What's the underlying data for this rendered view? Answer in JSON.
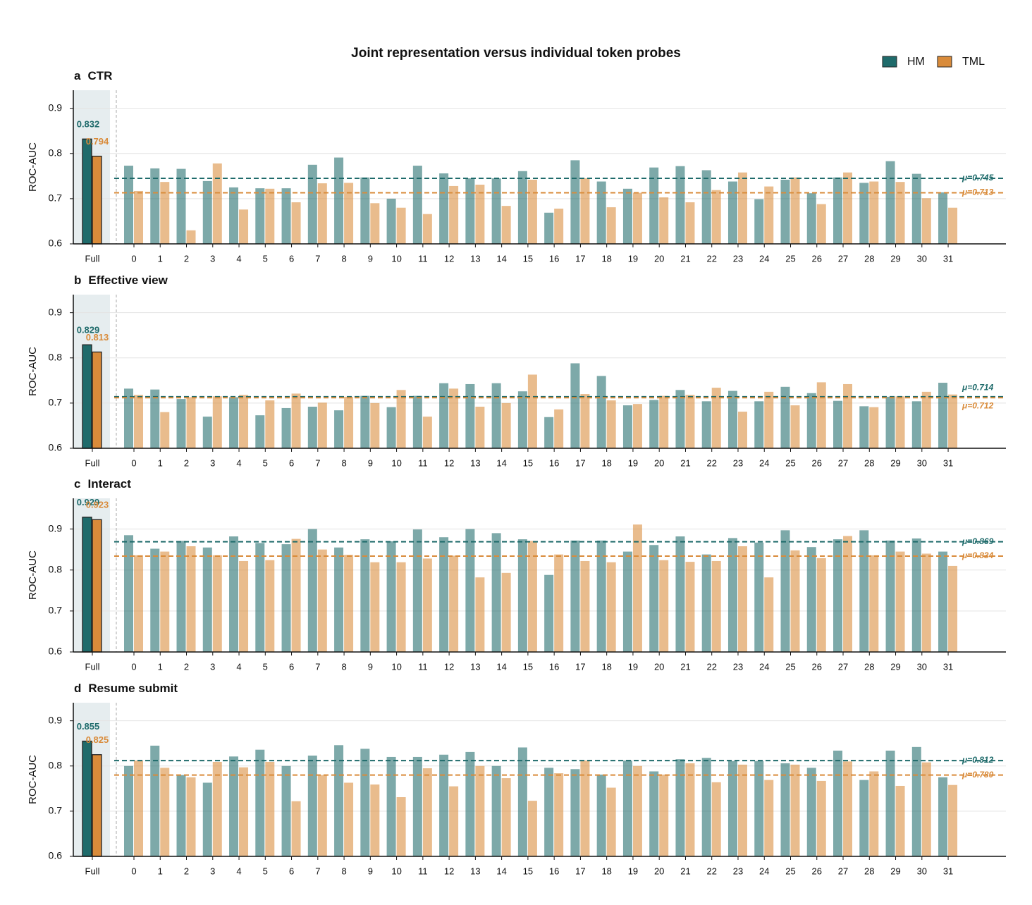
{
  "title": "Joint representation versus individual token probes",
  "legend": "upper right",
  "chart_data": [
    {
      "type": "bar",
      "panel_label": "a",
      "title": "CTR",
      "ylabel": "ROC-AUC",
      "categories": [
        "Full",
        "0",
        "1",
        "2",
        "3",
        "4",
        "5",
        "6",
        "7",
        "8",
        "9",
        "10",
        "11",
        "12",
        "13",
        "14",
        "15",
        "16",
        "17",
        "18",
        "19",
        "20",
        "21",
        "22",
        "23",
        "24",
        "25",
        "26",
        "27",
        "28",
        "29",
        "30",
        "31"
      ],
      "series": [
        {
          "name": "HM",
          "color": "#1f6b6b",
          "values": [
            0.832,
            0.773,
            0.767,
            0.766,
            0.739,
            0.725,
            0.723,
            0.723,
            0.775,
            0.791,
            0.747,
            0.7,
            0.773,
            0.756,
            0.745,
            0.745,
            0.761,
            0.669,
            0.785,
            0.738,
            0.722,
            0.769,
            0.772,
            0.763,
            0.738,
            0.699,
            0.742,
            0.712,
            0.747,
            0.735,
            0.783,
            0.755,
            0.714
          ],
          "mean": {
            "value": 0.745,
            "label": "μ=0.745"
          }
        },
        {
          "name": "TML",
          "color": "#d98b3a",
          "values": [
            0.794,
            0.717,
            0.737,
            0.63,
            0.778,
            0.676,
            0.722,
            0.692,
            0.734,
            0.735,
            0.69,
            0.68,
            0.666,
            0.728,
            0.731,
            0.684,
            0.742,
            0.678,
            0.745,
            0.681,
            0.713,
            0.703,
            0.692,
            0.719,
            0.758,
            0.727,
            0.747,
            0.688,
            0.758,
            0.738,
            0.737,
            0.701,
            0.68
          ],
          "mean": {
            "value": 0.713,
            "label": "μ=0.713"
          }
        }
      ],
      "ylim": [
        0.6,
        0.94
      ],
      "yticks": [
        0.6,
        0.7,
        0.8,
        0.9
      ],
      "grid": true
    },
    {
      "type": "bar",
      "panel_label": "b",
      "title": "Effective view",
      "ylabel": "ROC-AUC",
      "categories": [
        "Full",
        "0",
        "1",
        "2",
        "3",
        "4",
        "5",
        "6",
        "7",
        "8",
        "9",
        "10",
        "11",
        "12",
        "13",
        "14",
        "15",
        "16",
        "17",
        "18",
        "19",
        "20",
        "21",
        "22",
        "23",
        "24",
        "25",
        "26",
        "27",
        "28",
        "29",
        "30",
        "31"
      ],
      "series": [
        {
          "name": "HM",
          "color": "#1f6b6b",
          "values": [
            0.829,
            0.732,
            0.73,
            0.709,
            0.67,
            0.713,
            0.673,
            0.689,
            0.692,
            0.684,
            0.716,
            0.691,
            0.716,
            0.744,
            0.742,
            0.744,
            0.726,
            0.669,
            0.788,
            0.76,
            0.695,
            0.707,
            0.729,
            0.704,
            0.727,
            0.704,
            0.736,
            0.722,
            0.705,
            0.693,
            0.714,
            0.704,
            0.745
          ],
          "mean": {
            "value": 0.714,
            "label": "μ=0.714"
          }
        },
        {
          "name": "TML",
          "color": "#d98b3a",
          "values": [
            0.813,
            0.718,
            0.68,
            0.713,
            0.715,
            0.718,
            0.706,
            0.721,
            0.701,
            0.714,
            0.7,
            0.729,
            0.67,
            0.732,
            0.692,
            0.7,
            0.763,
            0.686,
            0.72,
            0.706,
            0.698,
            0.716,
            0.718,
            0.734,
            0.681,
            0.725,
            0.695,
            0.746,
            0.742,
            0.691,
            0.715,
            0.725,
            0.719
          ],
          "mean": {
            "value": 0.712,
            "label": "μ=0.712"
          }
        }
      ],
      "ylim": [
        0.6,
        0.94
      ],
      "yticks": [
        0.6,
        0.7,
        0.8,
        0.9
      ],
      "grid": true
    },
    {
      "type": "bar",
      "panel_label": "c",
      "title": "Interact",
      "ylabel": "ROC-AUC",
      "categories": [
        "Full",
        "0",
        "1",
        "2",
        "3",
        "4",
        "5",
        "6",
        "7",
        "8",
        "9",
        "10",
        "11",
        "12",
        "13",
        "14",
        "15",
        "16",
        "17",
        "18",
        "19",
        "20",
        "21",
        "22",
        "23",
        "24",
        "25",
        "26",
        "27",
        "28",
        "29",
        "30",
        "31"
      ],
      "series": [
        {
          "name": "HM",
          "color": "#1f6b6b",
          "values": [
            0.929,
            0.885,
            0.852,
            0.871,
            0.855,
            0.882,
            0.866,
            0.863,
            0.9,
            0.855,
            0.875,
            0.87,
            0.899,
            0.88,
            0.9,
            0.89,
            0.875,
            0.788,
            0.872,
            0.872,
            0.845,
            0.861,
            0.882,
            0.838,
            0.878,
            0.867,
            0.897,
            0.856,
            0.875,
            0.897,
            0.872,
            0.877,
            0.845
          ],
          "mean": {
            "value": 0.869,
            "label": "μ=0.869"
          }
        },
        {
          "name": "TML",
          "color": "#d98b3a",
          "values": [
            0.923,
            0.836,
            0.845,
            0.858,
            0.836,
            0.822,
            0.824,
            0.876,
            0.85,
            0.837,
            0.819,
            0.819,
            0.828,
            0.835,
            0.782,
            0.793,
            0.871,
            0.838,
            0.822,
            0.819,
            0.911,
            0.824,
            0.82,
            0.822,
            0.858,
            0.782,
            0.848,
            0.829,
            0.883,
            0.836,
            0.845,
            0.84,
            0.81
          ],
          "mean": {
            "value": 0.834,
            "label": "μ=0.834"
          }
        }
      ],
      "ylim": [
        0.6,
        0.975
      ],
      "yticks": [
        0.6,
        0.7,
        0.8,
        0.9
      ],
      "grid": true
    },
    {
      "type": "bar",
      "panel_label": "d",
      "title": "Resume submit",
      "ylabel": "ROC-AUC",
      "categories": [
        "Full",
        "0",
        "1",
        "2",
        "3",
        "4",
        "5",
        "6",
        "7",
        "8",
        "9",
        "10",
        "11",
        "12",
        "13",
        "14",
        "15",
        "16",
        "17",
        "18",
        "19",
        "20",
        "21",
        "22",
        "23",
        "24",
        "25",
        "26",
        "27",
        "28",
        "29",
        "30",
        "31"
      ],
      "series": [
        {
          "name": "HM",
          "color": "#1f6b6b",
          "values": [
            0.855,
            0.8,
            0.845,
            0.78,
            0.763,
            0.821,
            0.836,
            0.8,
            0.823,
            0.846,
            0.838,
            0.82,
            0.82,
            0.825,
            0.831,
            0.8,
            0.841,
            0.796,
            0.793,
            0.781,
            0.812,
            0.788,
            0.815,
            0.818,
            0.811,
            0.811,
            0.806,
            0.796,
            0.834,
            0.769,
            0.834,
            0.842,
            0.775
          ],
          "mean": {
            "value": 0.812,
            "label": "μ=0.812"
          }
        },
        {
          "name": "TML",
          "color": "#d98b3a",
          "values": [
            0.825,
            0.812,
            0.796,
            0.775,
            0.809,
            0.797,
            0.809,
            0.722,
            0.78,
            0.763,
            0.759,
            0.731,
            0.795,
            0.755,
            0.8,
            0.773,
            0.723,
            0.784,
            0.812,
            0.752,
            0.8,
            0.781,
            0.806,
            0.764,
            0.803,
            0.769,
            0.803,
            0.767,
            0.81,
            0.788,
            0.756,
            0.808,
            0.758
          ],
          "mean": {
            "value": 0.78,
            "label": "μ=0.780"
          }
        }
      ],
      "ylim": [
        0.6,
        0.94
      ],
      "yticks": [
        0.6,
        0.7,
        0.8,
        0.9
      ],
      "grid": true
    }
  ]
}
